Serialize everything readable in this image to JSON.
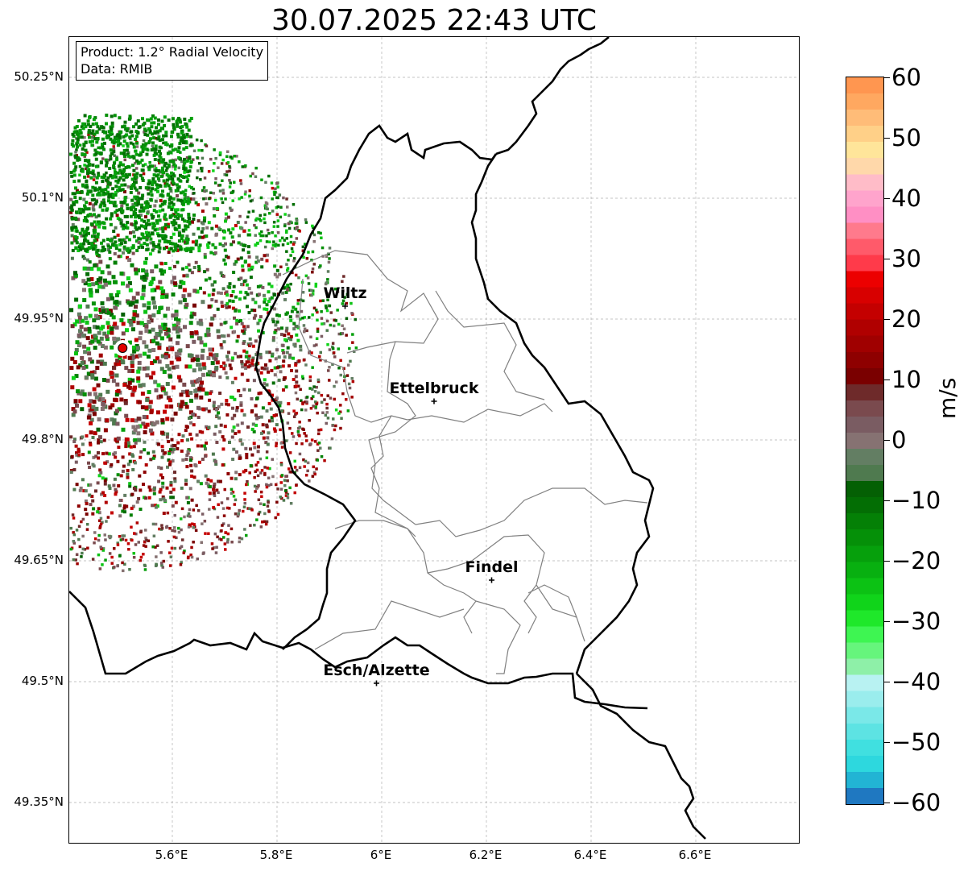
{
  "title": "30.07.2025 22:43 UTC",
  "info": {
    "product": "Product: 1.2° Radial Velocity",
    "data": "Data: RMIB"
  },
  "lat_ticks": [
    "50.25°N",
    "50.1°N",
    "49.95°N",
    "49.8°N",
    "49.65°N",
    "49.5°N",
    "49.35°N"
  ],
  "lon_ticks": [
    "5.6°E",
    "5.8°E",
    "6°E",
    "6.2°E",
    "6.4°E",
    "6.6°E"
  ],
  "cities": [
    {
      "name": "Wiltz",
      "lon": 5.93,
      "lat": 49.966
    },
    {
      "name": "Ettelbruck",
      "lon": 6.1,
      "lat": 49.848
    },
    {
      "name": "Findel",
      "lon": 6.21,
      "lat": 49.626
    },
    {
      "name": "Esch/Alzette",
      "lon": 5.99,
      "lat": 49.498
    }
  ],
  "radar_site": {
    "lon": 5.505,
    "lat": 49.914
  },
  "colorbar": {
    "unit": "m/s",
    "ticks": [
      "60",
      "50",
      "40",
      "30",
      "20",
      "10",
      "0",
      "−10",
      "−20",
      "−30",
      "−40",
      "−50",
      "−60"
    ],
    "colors_bottom_to_top": [
      "#1f78c1",
      "#22b4d4",
      "#2dd8de",
      "#40e0e0",
      "#5de3e3",
      "#7ae8e8",
      "#9aeded",
      "#b8f2f2",
      "#8ef0a8",
      "#66f57c",
      "#3ef552",
      "#1fe82a",
      "#10d41a",
      "#0cc214",
      "#08b010",
      "#06a00c",
      "#059008",
      "#048006",
      "#036e04",
      "#046004",
      "#4f7a4f",
      "#637e63",
      "#867272",
      "#7a5c62",
      "#7a4a4e",
      "#6e2a2a",
      "#7a0000",
      "#8e0000",
      "#a00000",
      "#b00000",
      "#c40000",
      "#d80000",
      "#ec0000",
      "#ff3a4a",
      "#ff5a6a",
      "#ff7a8c",
      "#ff8fc4",
      "#ffa4cc",
      "#ffbcc8",
      "#ffd8aa",
      "#ffe59a",
      "#ffd088",
      "#ffbc78",
      "#ffa860",
      "#ff9650"
    ]
  }
}
